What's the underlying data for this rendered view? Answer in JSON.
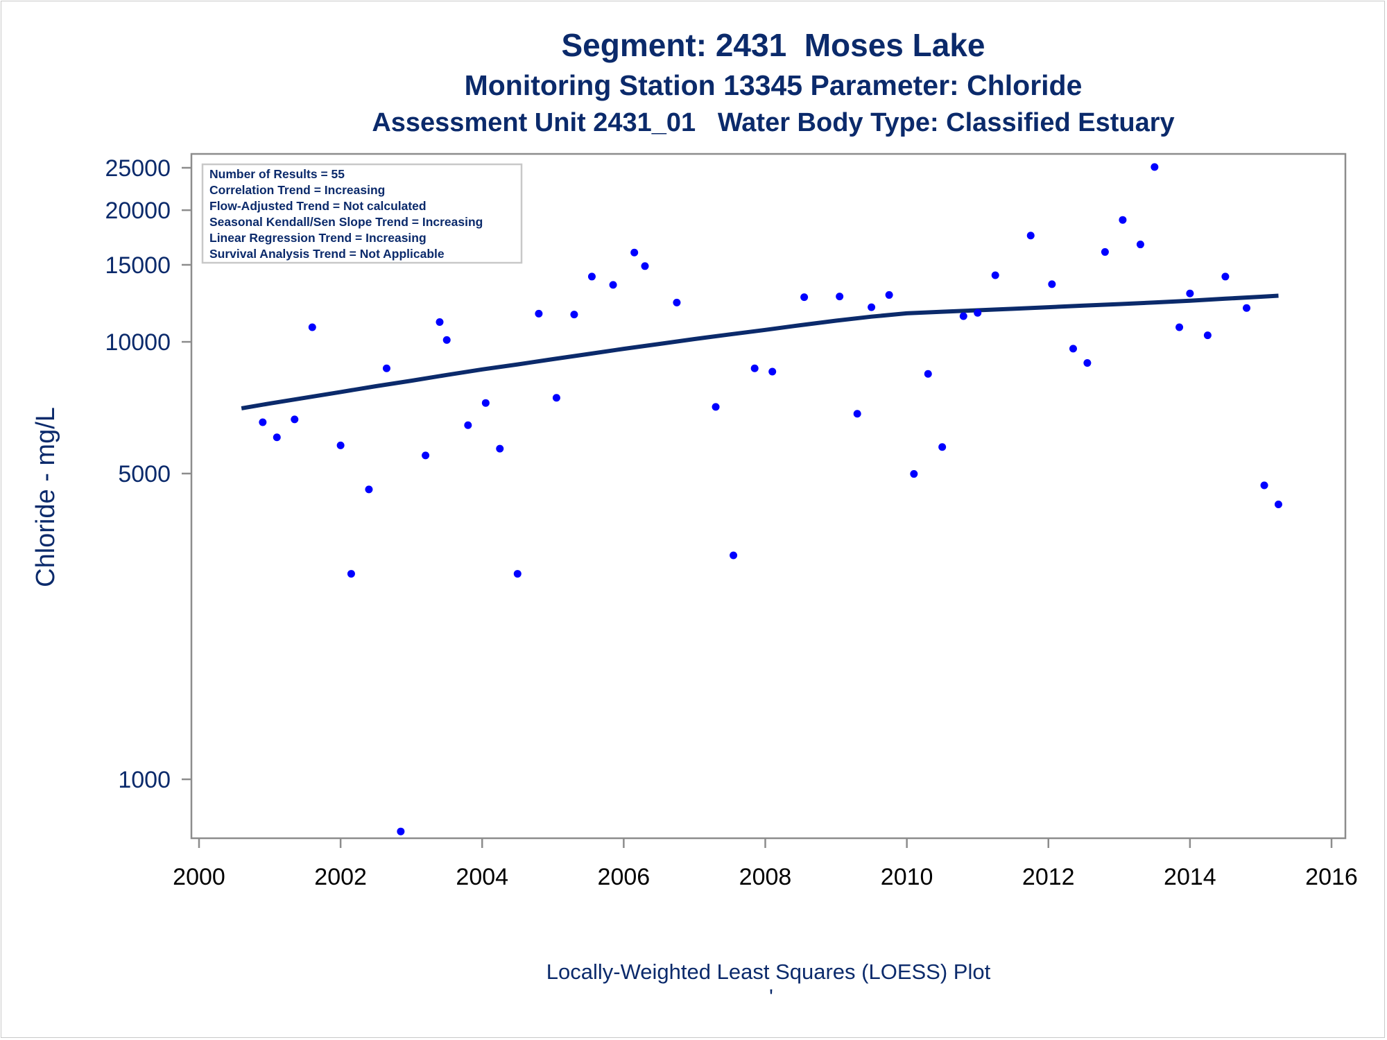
{
  "titles": {
    "line1": "Segment: 2431  Moses Lake",
    "line2": "Monitoring Station 13345 Parameter: Chloride",
    "line3": "Assessment Unit 2431_01   Water Body Type: Classified Estuary"
  },
  "footnote": "Locally-Weighted Least Squares (LOESS) Plot",
  "footnote_mark": "'",
  "stats_box": [
    "Number of Results = 55",
    "Correlation Trend = Increasing",
    "Flow-Adjusted Trend = Not calculated",
    "Seasonal Kendall/Sen Slope Trend = Increasing",
    "Linear Regression Trend = Increasing",
    "Survival Analysis Trend = Not Applicable"
  ],
  "colors": {
    "text": "#0b2a6b",
    "points": "#0000ff",
    "trend_line": "#0b2a6b",
    "frame": "#8c8c8c"
  },
  "chart_data": {
    "type": "scatter",
    "title": "Segment: 2431  Moses Lake",
    "xlabel": "",
    "ylabel": "Chloride - mg/L",
    "yscale": "log",
    "xlim": [
      2000,
      2016
    ],
    "ylim": [
      800,
      26000
    ],
    "x_ticks": [
      2000,
      2002,
      2004,
      2006,
      2008,
      2010,
      2012,
      2014,
      2016
    ],
    "y_ticks": [
      1000,
      5000,
      10000,
      15000,
      20000,
      25000
    ],
    "grid": false,
    "legend": "none",
    "series": [
      {
        "type": "scatter",
        "points": [
          [
            2000.6,
            15500
          ],
          [
            2000.9,
            6550
          ],
          [
            2001.1,
            6050
          ],
          [
            2001.35,
            6650
          ],
          [
            2001.6,
            10800
          ],
          [
            2002.0,
            5800
          ],
          [
            2002.15,
            2950
          ],
          [
            2002.4,
            4600
          ],
          [
            2002.65,
            8700
          ],
          [
            2002.85,
            760
          ],
          [
            2003.2,
            5500
          ],
          [
            2003.4,
            11100
          ],
          [
            2003.5,
            10100
          ],
          [
            2003.8,
            6450
          ],
          [
            2004.05,
            7250
          ],
          [
            2004.25,
            5700
          ],
          [
            2004.5,
            2950
          ],
          [
            2004.8,
            11600
          ],
          [
            2005.05,
            7450
          ],
          [
            2005.3,
            11550
          ],
          [
            2005.55,
            14100
          ],
          [
            2005.85,
            13500
          ],
          [
            2006.15,
            16000
          ],
          [
            2006.3,
            14900
          ],
          [
            2006.75,
            12300
          ],
          [
            2007.3,
            7100
          ],
          [
            2007.55,
            3250
          ],
          [
            2007.85,
            8700
          ],
          [
            2008.1,
            8550
          ],
          [
            2008.55,
            12650
          ],
          [
            2009.05,
            12700
          ],
          [
            2009.3,
            6850
          ],
          [
            2009.5,
            12000
          ],
          [
            2009.75,
            12800
          ],
          [
            2010.1,
            4990
          ],
          [
            2010.3,
            8450
          ],
          [
            2010.5,
            5750
          ],
          [
            2010.8,
            11450
          ],
          [
            2011.0,
            11650
          ],
          [
            2011.25,
            14200
          ],
          [
            2011.75,
            17500
          ],
          [
            2012.05,
            13550
          ],
          [
            2012.35,
            9650
          ],
          [
            2012.55,
            8950
          ],
          [
            2012.8,
            16050
          ],
          [
            2013.05,
            19000
          ],
          [
            2013.3,
            16700
          ],
          [
            2013.5,
            25100
          ],
          [
            2013.85,
            10800
          ],
          [
            2014.0,
            12900
          ],
          [
            2014.25,
            10350
          ],
          [
            2014.5,
            14100
          ],
          [
            2014.8,
            11950
          ],
          [
            2015.05,
            4700
          ],
          [
            2015.25,
            4250
          ]
        ]
      },
      {
        "type": "line",
        "name": "",
        "points": [
          [
            2000.6,
            7050
          ],
          [
            2001.0,
            7230
          ],
          [
            2001.5,
            7450
          ],
          [
            2002.0,
            7680
          ],
          [
            2002.5,
            7920
          ],
          [
            2003.0,
            8150
          ],
          [
            2003.5,
            8400
          ],
          [
            2004.0,
            8650
          ],
          [
            2004.5,
            8880
          ],
          [
            2005.0,
            9130
          ],
          [
            2005.5,
            9380
          ],
          [
            2006.0,
            9640
          ],
          [
            2006.5,
            9890
          ],
          [
            2007.0,
            10150
          ],
          [
            2007.5,
            10400
          ],
          [
            2008.0,
            10650
          ],
          [
            2008.5,
            10920
          ],
          [
            2009.0,
            11180
          ],
          [
            2009.5,
            11420
          ],
          [
            2010.0,
            11620
          ],
          [
            2010.5,
            11720
          ],
          [
            2011.0,
            11810
          ],
          [
            2011.5,
            11900
          ],
          [
            2012.0,
            12000
          ],
          [
            2012.5,
            12100
          ],
          [
            2013.0,
            12200
          ],
          [
            2013.5,
            12300
          ],
          [
            2014.0,
            12420
          ],
          [
            2014.5,
            12550
          ],
          [
            2015.0,
            12680
          ],
          [
            2015.25,
            12750
          ]
        ]
      }
    ]
  }
}
